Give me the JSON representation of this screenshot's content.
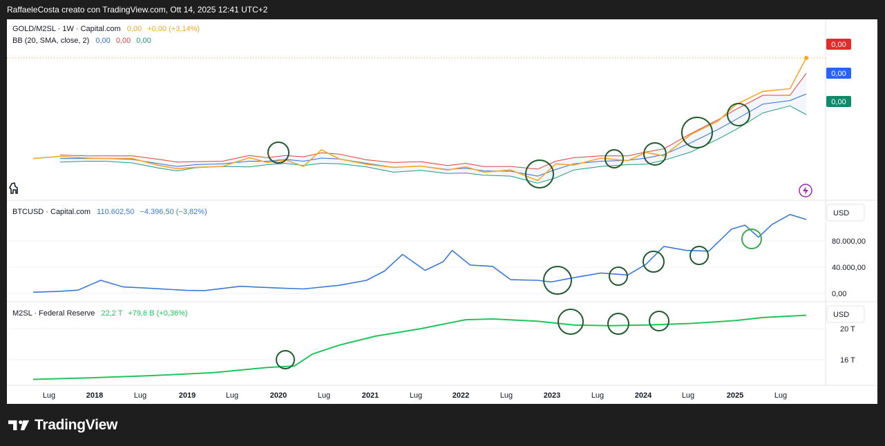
{
  "header": {
    "text": "RaffaeleCosta creato con TradingView.com, Ott 14, 2025 12:41 UTC+2"
  },
  "footer": {
    "brand": "TradingView"
  },
  "colors": {
    "price": "#f5a623",
    "bb_upper": "#e0403a",
    "bb_basis": "#2f6fd6",
    "bb_lower": "#1f9a7a",
    "btc": "#3a78d6",
    "m2": "#1fc45a",
    "circle": "#1f5a2a",
    "circle_light": "#3aa84a",
    "badge_red": "#e22b2b",
    "badge_blue": "#2962ff",
    "badge_green": "#0f8a6a"
  },
  "pane1": {
    "legend_main": {
      "name": "GOLD/M2SL · 1W · Capital.com",
      "v1": "0,00",
      "v2": "+0,00 (+3,14%)"
    },
    "legend_bb": {
      "name": "BB (20, SMA, close, 2)",
      "basis": "0,00",
      "upper": "0,00",
      "lower": "0,00"
    },
    "badges": {
      "upper": "0,00",
      "basis": "0,00",
      "lower": "0,00"
    }
  },
  "pane2": {
    "legend": {
      "name": "BTCUSD · Capital.com",
      "price": "110.602,50",
      "change": "−4.396,50 (−3,82%)"
    },
    "currency": "USD",
    "ticks": [
      "80.000,00",
      "40.000,00",
      "0,00"
    ]
  },
  "pane3": {
    "legend": {
      "name": "M2SL · Federal Reserve",
      "value": "22,2 T",
      "change": "+79,6 B (+0,36%)"
    },
    "currency": "USD",
    "ticks": [
      "20 T",
      "16 T"
    ]
  },
  "time_axis": {
    "labels": [
      "Lug",
      "2018",
      "Lug",
      "2019",
      "Lug",
      "2020",
      "Lug",
      "2021",
      "Lug",
      "2022",
      "Lug",
      "2023",
      "Lug",
      "2024",
      "Lug",
      "2025",
      "Lug"
    ]
  },
  "chart_data": [
    {
      "type": "line",
      "title": "GOLD/M2SL · 1W · Capital.com",
      "x": [
        2017.2,
        2017.5,
        2017.8,
        2018.0,
        2018.3,
        2018.6,
        2018.8,
        2019.0,
        2019.3,
        2019.6,
        2019.8,
        2020.0,
        2020.2,
        2020.4,
        2020.6,
        2020.9,
        2021.2,
        2021.5,
        2021.8,
        2022.0,
        2022.2,
        2022.5,
        2022.8,
        2023.0,
        2023.2,
        2023.5,
        2023.8,
        2024.0,
        2024.2,
        2024.5,
        2024.8,
        2025.0,
        2025.3,
        2025.6,
        2025.78
      ],
      "series": [
        {
          "name": "GOLD/M2SL",
          "values": [
            36,
            41,
            37,
            36,
            36,
            20,
            13,
            16,
            18,
            38,
            27,
            33,
            18,
            56,
            35,
            23,
            16,
            19,
            10,
            17,
            5,
            10,
            -14,
            24,
            21,
            37,
            31,
            50,
            42,
            91,
            121,
            159,
            189,
            195,
            265
          ]
        },
        {
          "name": "BB upper",
          "values": [
            null,
            44,
            42,
            42,
            42,
            34,
            28,
            29,
            30,
            43,
            38,
            43,
            40,
            49,
            46,
            33,
            27,
            29,
            20,
            25,
            18,
            18,
            12,
            30,
            38,
            42,
            42,
            51,
            58,
            93,
            124,
            148,
            180,
            180,
            230
          ]
        },
        {
          "name": "BB basis",
          "values": [
            null,
            36,
            36,
            36,
            34,
            24,
            18,
            22,
            24,
            30,
            30,
            34,
            30,
            37,
            35,
            25,
            16,
            19,
            11,
            14,
            8,
            7,
            -4,
            11,
            24,
            30,
            32,
            37,
            45,
            72,
            102,
            125,
            160,
            168,
            183
          ]
        },
        {
          "name": "BB lower",
          "values": [
            null,
            28,
            30,
            30,
            26,
            14,
            8,
            15,
            18,
            17,
            22,
            25,
            20,
            25,
            24,
            17,
            5,
            9,
            2,
            3,
            -2,
            -4,
            -20,
            -8,
            10,
            18,
            22,
            23,
            32,
            51,
            80,
            102,
            140,
            156,
            136
          ]
        }
      ],
      "ylim": [
        -40,
        290
      ]
    },
    {
      "type": "line",
      "title": "BTCUSD · Capital.com",
      "x": [
        2017.2,
        2017.5,
        2017.7,
        2017.95,
        2018.2,
        2018.5,
        2018.9,
        2019.1,
        2019.5,
        2019.9,
        2020.2,
        2020.6,
        2020.9,
        2021.1,
        2021.3,
        2021.55,
        2021.75,
        2021.85,
        2022.05,
        2022.3,
        2022.5,
        2022.8,
        2022.95,
        2023.2,
        2023.5,
        2023.8,
        2024.0,
        2024.2,
        2024.45,
        2024.7,
        2024.95,
        2025.1,
        2025.25,
        2025.4,
        2025.6,
        2025.78
      ],
      "series": [
        {
          "name": "BTCUSD",
          "values": [
            1000,
            2500,
            4300,
            19000,
            9000,
            7000,
            3800,
            3500,
            10000,
            7500,
            6000,
            11500,
            19000,
            33000,
            58000,
            34000,
            47000,
            64000,
            42000,
            40000,
            20000,
            19000,
            16500,
            23000,
            30000,
            27000,
            43000,
            70000,
            64000,
            63000,
            96000,
            102000,
            84000,
            103000,
            118000,
            110602
          ]
        }
      ],
      "ylim": [
        -8000,
        125000
      ],
      "ylabel_ticks": [
        "80.000,00",
        "40.000,00",
        "0,00"
      ]
    },
    {
      "type": "line",
      "title": "M2SL · Federal Reserve",
      "x": [
        2017.2,
        2017.8,
        2018.5,
        2019.2,
        2019.8,
        2020.1,
        2020.3,
        2020.6,
        2021.0,
        2021.5,
        2022.0,
        2022.3,
        2022.8,
        2023.2,
        2023.6,
        2024.0,
        2024.5,
        2025.0,
        2025.3,
        2025.78
      ],
      "series": [
        {
          "name": "M2SL",
          "values": [
            13.6,
            13.8,
            14.1,
            14.5,
            15.2,
            15.4,
            17.0,
            18.2,
            19.4,
            20.4,
            21.6,
            21.7,
            21.4,
            20.9,
            20.8,
            20.9,
            21.1,
            21.5,
            21.9,
            22.2
          ]
        }
      ],
      "ylim": [
        13,
        23
      ],
      "ylabel_ticks": [
        "20 T",
        "16 T"
      ]
    }
  ]
}
